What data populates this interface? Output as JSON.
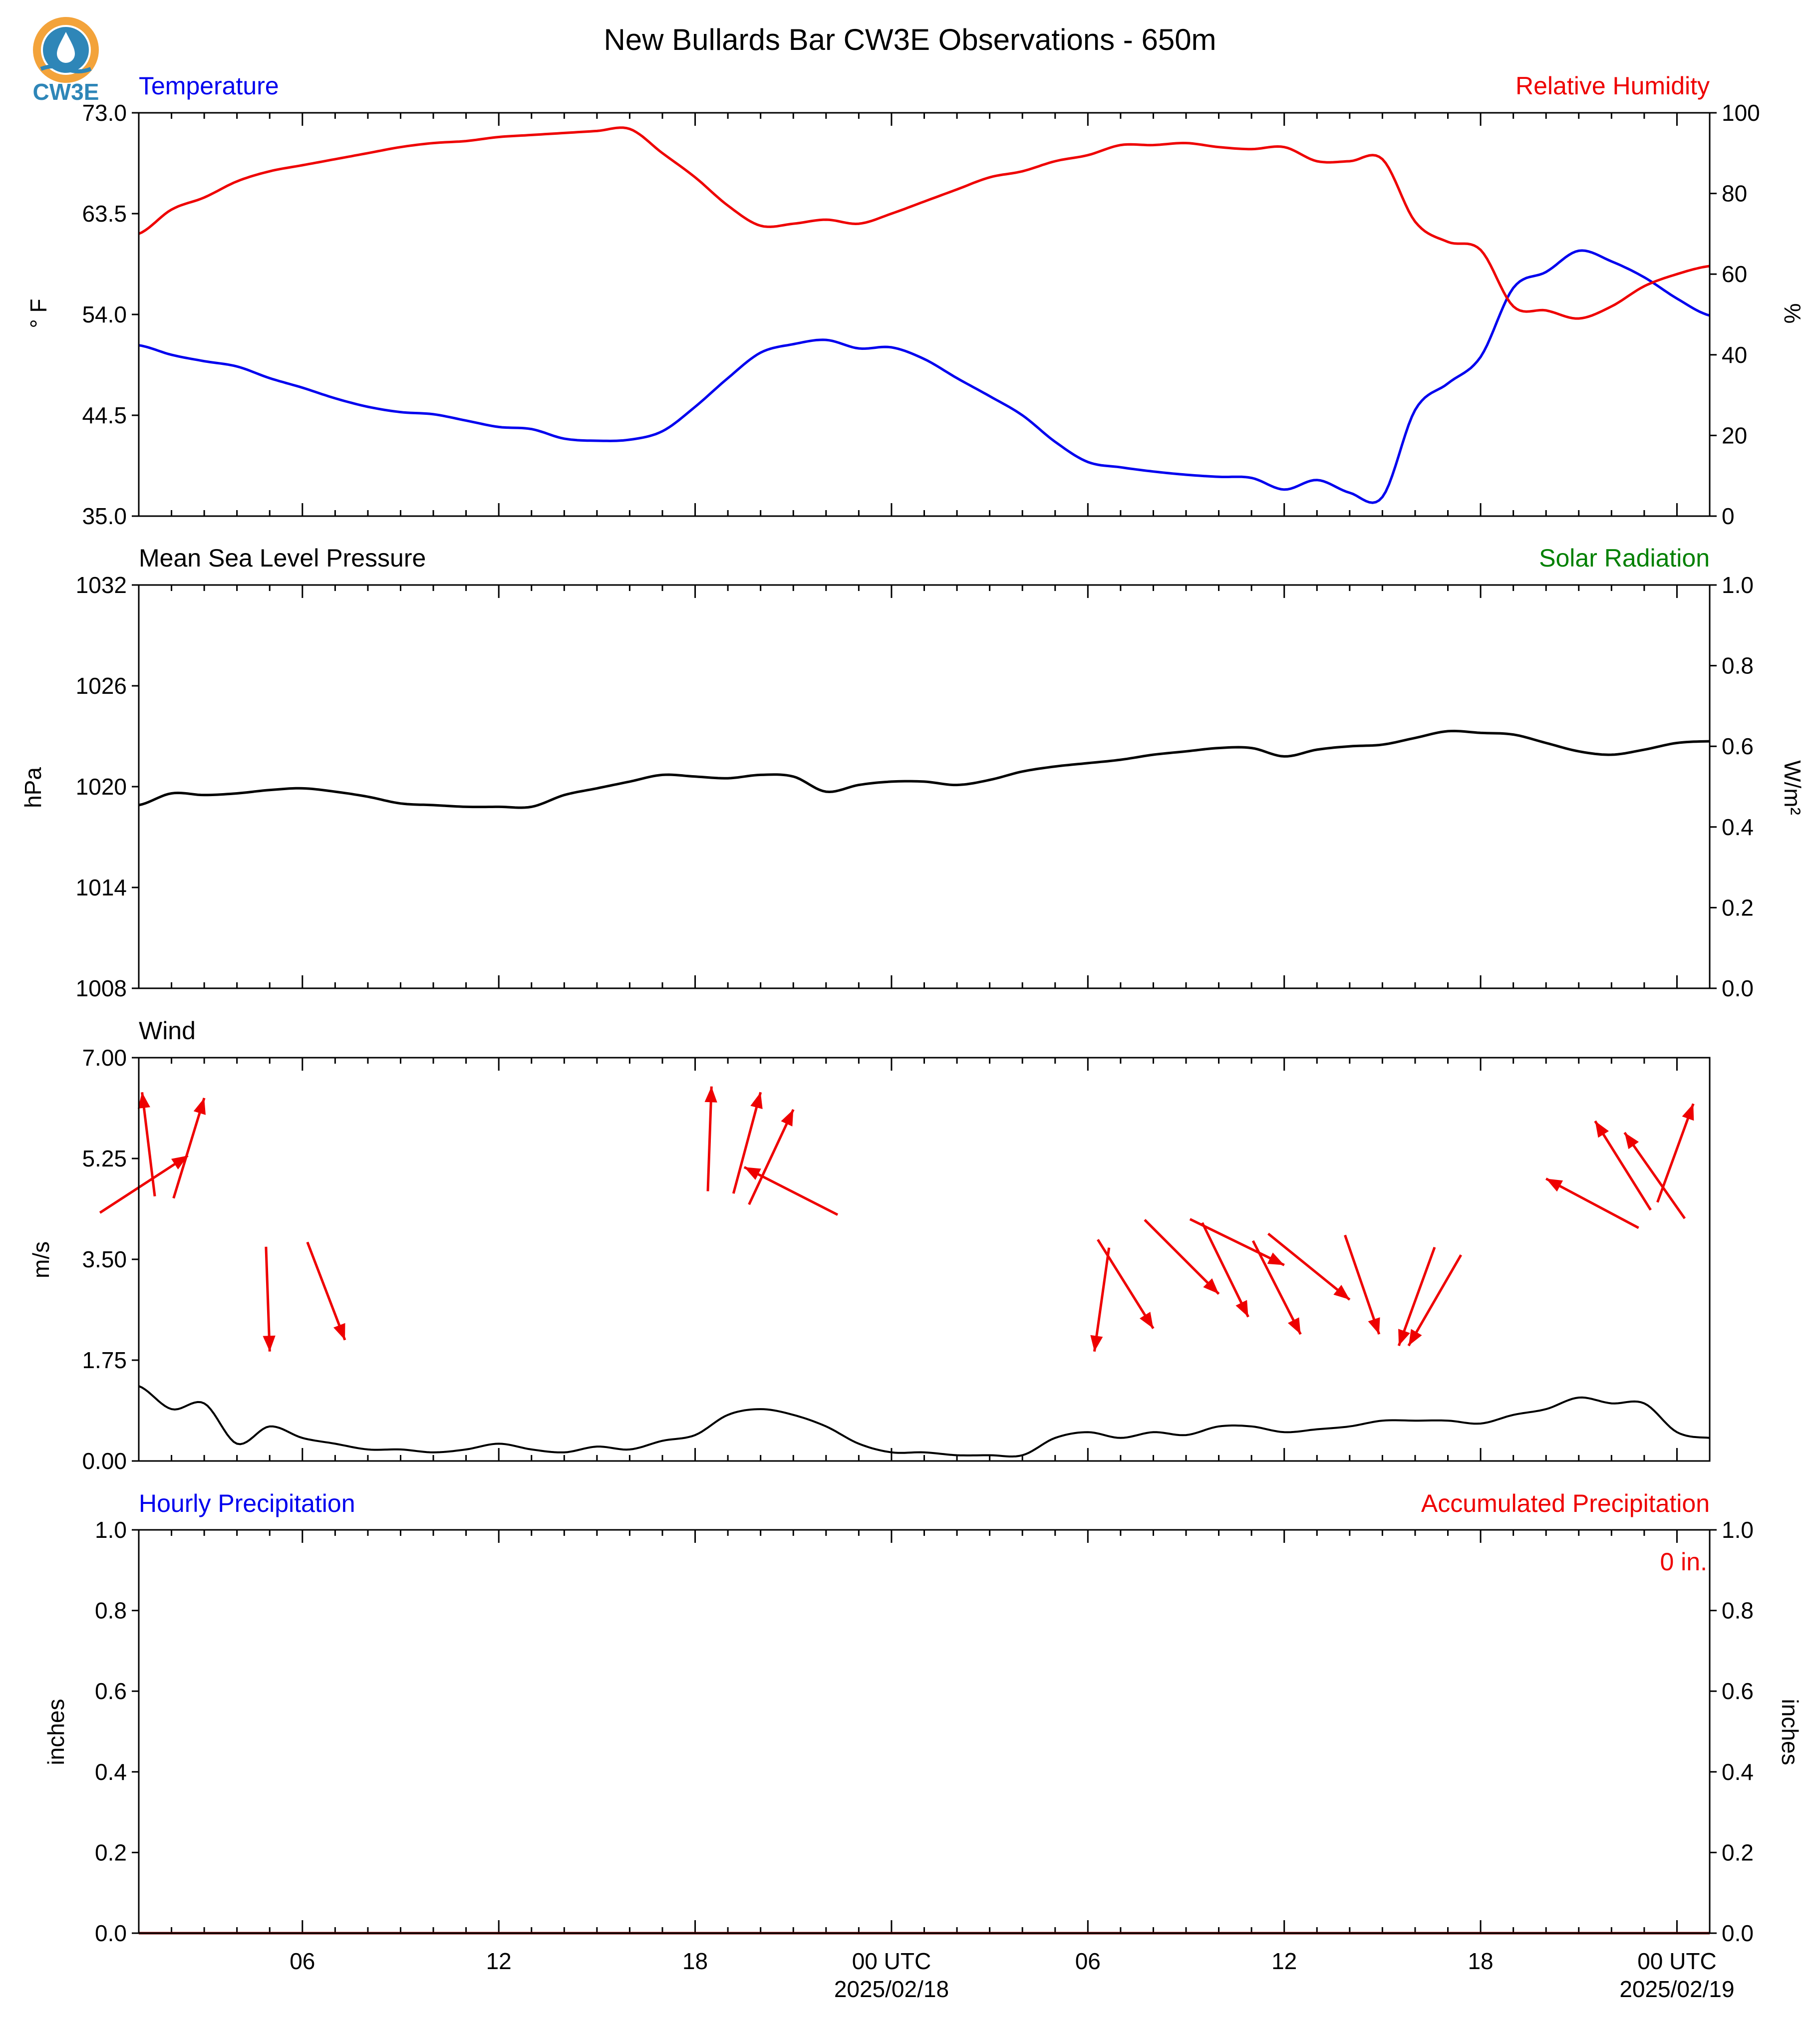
{
  "title": "New Bullards Bar CW3E Observations - 650m",
  "logo_text": "CW3E",
  "colors": {
    "blue": "#0000ee",
    "red": "#ee0000",
    "green": "#008000",
    "black": "#000000",
    "logo": "#2e86b8",
    "logo_ring": "#f3a33a"
  },
  "x_axis": {
    "tick_labels": [
      "06",
      "12",
      "18",
      "00 UTC",
      "06",
      "12",
      "18",
      "00 UTC"
    ],
    "tick_hours": [
      6,
      12,
      18,
      24,
      30,
      36,
      42,
      48
    ],
    "date_labels": [
      "2025/02/18",
      "2025/02/19"
    ],
    "start_hour": 1.0,
    "end_hour": 49.0
  },
  "panels": {
    "temp_rh": {
      "left_title": "Temperature",
      "right_title": "Relative Humidity",
      "left_unit": "° F",
      "right_unit": "%",
      "left_ticks": [
        "35.0",
        "44.5",
        "54.0",
        "63.5",
        "73.0"
      ],
      "right_ticks": [
        "0",
        "20",
        "40",
        "60",
        "80",
        "100"
      ]
    },
    "pressure": {
      "left_title": "Mean Sea Level Pressure",
      "right_title": "Solar Radiation",
      "left_unit": "hPa",
      "right_unit": "W/m²",
      "left_ticks": [
        "1008",
        "1014",
        "1020",
        "1026",
        "1032"
      ],
      "right_ticks": [
        "0.0",
        "0.2",
        "0.4",
        "0.6",
        "0.8",
        "1.0"
      ]
    },
    "wind": {
      "left_title": "Wind",
      "left_unit": "m/s",
      "left_ticks": [
        "0.00",
        "1.75",
        "3.50",
        "5.25",
        "7.00"
      ]
    },
    "precip": {
      "left_title": "Hourly Precipitation",
      "right_title": "Accumulated Precipitation",
      "left_unit": "inches",
      "right_unit": "inches",
      "left_ticks": [
        "0.0",
        "0.2",
        "0.4",
        "0.6",
        "0.8",
        "1.0"
      ],
      "right_ticks": [
        "0.0",
        "0.2",
        "0.4",
        "0.6",
        "0.8",
        "1.0"
      ],
      "total_label": "0 in."
    }
  },
  "chart_data": [
    {
      "type": "line",
      "title": "Temperature",
      "ylabel": "° F",
      "ylim": [
        35.0,
        73.0
      ],
      "x_hours": [
        1,
        2,
        3,
        4,
        5,
        6,
        7,
        8,
        9,
        10,
        11,
        12,
        13,
        14,
        15,
        16,
        17,
        18,
        19,
        20,
        21,
        22,
        23,
        24,
        25,
        26,
        27,
        28,
        29,
        30,
        31,
        32,
        33,
        34,
        35,
        36,
        37,
        38,
        39,
        40,
        41,
        42,
        43,
        44,
        45,
        46,
        47,
        48,
        49
      ],
      "series": [
        {
          "name": "Temperature",
          "color": "#0000ee",
          "values": [
            51.1,
            50.2,
            49.6,
            49.1,
            48.0,
            47.1,
            46.1,
            45.3,
            44.8,
            44.6,
            44.0,
            43.4,
            43.2,
            42.3,
            42.1,
            42.2,
            43.0,
            45.3,
            48.0,
            50.4,
            51.2,
            51.6,
            50.8,
            50.9,
            49.8,
            48.0,
            46.3,
            44.5,
            42.0,
            40.1,
            39.6,
            39.2,
            38.9,
            38.7,
            38.6,
            37.5,
            38.4,
            37.2,
            36.8,
            45.0,
            47.5,
            50.0,
            56.5,
            58.0,
            60.0,
            59.0,
            57.5,
            55.5,
            53.9
          ]
        }
      ]
    },
    {
      "type": "line",
      "title": "Relative Humidity",
      "ylabel": "%",
      "ylim": [
        0,
        100
      ],
      "x_hours": [
        1,
        2,
        3,
        4,
        5,
        6,
        7,
        8,
        9,
        10,
        11,
        12,
        13,
        14,
        15,
        16,
        17,
        18,
        19,
        20,
        21,
        22,
        23,
        24,
        25,
        26,
        27,
        28,
        29,
        30,
        31,
        32,
        33,
        34,
        35,
        36,
        37,
        38,
        39,
        40,
        41,
        42,
        43,
        44,
        45,
        46,
        47,
        48,
        49
      ],
      "series": [
        {
          "name": "Relative Humidity",
          "color": "#ee0000",
          "values": [
            70.0,
            76.0,
            79.0,
            83.0,
            85.5,
            87.0,
            88.5,
            90.0,
            91.5,
            92.5,
            93.0,
            94.0,
            94.5,
            95.0,
            95.5,
            96.0,
            90.0,
            84.0,
            77.0,
            72.0,
            72.5,
            73.5,
            72.5,
            75.0,
            78.0,
            81.0,
            84.0,
            85.5,
            88.0,
            89.5,
            92.0,
            92.0,
            92.5,
            91.5,
            91.0,
            91.5,
            88.0,
            88.0,
            88.5,
            73.0,
            68.0,
            66.0,
            52.0,
            51.0,
            49.0,
            52.0,
            57.0,
            60.0,
            62.0
          ]
        }
      ]
    },
    {
      "type": "line",
      "title": "Mean Sea Level Pressure",
      "ylabel": "hPa",
      "ylim": [
        1008,
        1032
      ],
      "x_hours": [
        1,
        2,
        3,
        4,
        5,
        6,
        7,
        8,
        9,
        10,
        11,
        12,
        13,
        14,
        15,
        16,
        17,
        18,
        19,
        20,
        21,
        22,
        23,
        24,
        25,
        26,
        27,
        28,
        29,
        30,
        31,
        32,
        33,
        34,
        35,
        36,
        37,
        38,
        39,
        40,
        41,
        42,
        43,
        44,
        45,
        46,
        47,
        48,
        49
      ],
      "series": [
        {
          "name": "Mean Sea Level Pressure",
          "color": "#000000",
          "values": [
            1018.9,
            1019.6,
            1019.5,
            1019.6,
            1019.8,
            1019.9,
            1019.7,
            1019.4,
            1019.0,
            1018.9,
            1018.8,
            1018.8,
            1018.8,
            1019.5,
            1019.9,
            1020.3,
            1020.7,
            1020.6,
            1020.5,
            1020.7,
            1020.6,
            1019.7,
            1020.1,
            1020.3,
            1020.3,
            1020.1,
            1020.4,
            1020.9,
            1021.2,
            1021.4,
            1021.6,
            1021.9,
            1022.1,
            1022.3,
            1022.3,
            1021.8,
            1022.2,
            1022.4,
            1022.5,
            1022.9,
            1023.3,
            1023.2,
            1023.1,
            1022.6,
            1022.1,
            1021.9,
            1022.2,
            1022.6,
            1022.7
          ]
        }
      ]
    },
    {
      "type": "line",
      "title": "Solar Radiation",
      "ylabel": "W/m²",
      "ylim": [
        0.0,
        1.0
      ],
      "series": [
        {
          "name": "Solar Radiation",
          "color": "#008000",
          "values": []
        }
      ]
    },
    {
      "type": "line",
      "title": "Wind",
      "ylabel": "m/s",
      "ylim": [
        0.0,
        7.0
      ],
      "x_hours": [
        1,
        2,
        3,
        4,
        5,
        6,
        7,
        8,
        9,
        10,
        11,
        12,
        13,
        14,
        15,
        16,
        17,
        18,
        19,
        20,
        21,
        22,
        23,
        24,
        25,
        26,
        27,
        28,
        29,
        30,
        31,
        32,
        33,
        34,
        35,
        36,
        37,
        38,
        39,
        40,
        41,
        42,
        43,
        44,
        45,
        46,
        47,
        48,
        49
      ],
      "series": [
        {
          "name": "Wind speed",
          "color": "#000000",
          "values": [
            1.3,
            0.9,
            1.0,
            0.3,
            0.6,
            0.4,
            0.3,
            0.2,
            0.2,
            0.15,
            0.2,
            0.3,
            0.2,
            0.15,
            0.25,
            0.2,
            0.35,
            0.45,
            0.8,
            0.9,
            0.8,
            0.6,
            0.3,
            0.15,
            0.15,
            0.1,
            0.1,
            0.1,
            0.4,
            0.5,
            0.4,
            0.5,
            0.45,
            0.6,
            0.6,
            0.5,
            0.55,
            0.6,
            0.7,
            0.7,
            0.7,
            0.65,
            0.8,
            0.9,
            1.1,
            1.0,
            1.0,
            0.5,
            0.4
          ]
        }
      ],
      "vectors": [
        {
          "hour": 1.1,
          "speed": 6.4,
          "dir_from": 173
        },
        {
          "hour": 2.5,
          "speed": 5.3,
          "dir_from": 237
        },
        {
          "hour": 3.0,
          "speed": 6.3,
          "dir_from": 197
        },
        {
          "hour": 5.0,
          "speed": 1.9,
          "dir_from": 358
        },
        {
          "hour": 7.3,
          "speed": 2.1,
          "dir_from": 339
        },
        {
          "hour": 18.5,
          "speed": 6.5,
          "dir_from": 182
        },
        {
          "hour": 19.5,
          "speed": 5.1,
          "dir_from": 117
        },
        {
          "hour": 20.0,
          "speed": 6.4,
          "dir_from": 195
        },
        {
          "hour": 21.0,
          "speed": 6.1,
          "dir_from": 205
        },
        {
          "hour": 30.2,
          "speed": 1.9,
          "dir_from": 8
        },
        {
          "hour": 32.0,
          "speed": 2.3,
          "dir_from": 328
        },
        {
          "hour": 34.0,
          "speed": 2.9,
          "dir_from": 315
        },
        {
          "hour": 34.9,
          "speed": 2.5,
          "dir_from": 334
        },
        {
          "hour": 36.0,
          "speed": 3.4,
          "dir_from": 296
        },
        {
          "hour": 36.5,
          "speed": 2.2,
          "dir_from": 333
        },
        {
          "hour": 38.0,
          "speed": 2.8,
          "dir_from": 309
        },
        {
          "hour": 38.9,
          "speed": 2.2,
          "dir_from": 341
        },
        {
          "hour": 39.5,
          "speed": 2.0,
          "dir_from": 20
        },
        {
          "hour": 39.8,
          "speed": 2.0,
          "dir_from": 30
        },
        {
          "hour": 44.0,
          "speed": 4.9,
          "dir_from": 118
        },
        {
          "hour": 45.5,
          "speed": 5.9,
          "dir_from": 148
        },
        {
          "hour": 46.4,
          "speed": 5.7,
          "dir_from": 145
        },
        {
          "hour": 48.5,
          "speed": 6.2,
          "dir_from": 200
        }
      ]
    },
    {
      "type": "bar",
      "title": "Hourly Precipitation",
      "ylabel": "inches",
      "ylim": [
        0.0,
        1.0
      ],
      "series": [
        {
          "name": "Hourly Precipitation",
          "color": "#0000ee",
          "values": []
        }
      ]
    },
    {
      "type": "line",
      "title": "Accumulated Precipitation",
      "ylabel": "inches",
      "ylim": [
        0.0,
        1.0
      ],
      "series": [
        {
          "name": "Accumulated Precipitation",
          "color": "#ee0000",
          "values": [
            0,
            0
          ]
        }
      ]
    }
  ]
}
